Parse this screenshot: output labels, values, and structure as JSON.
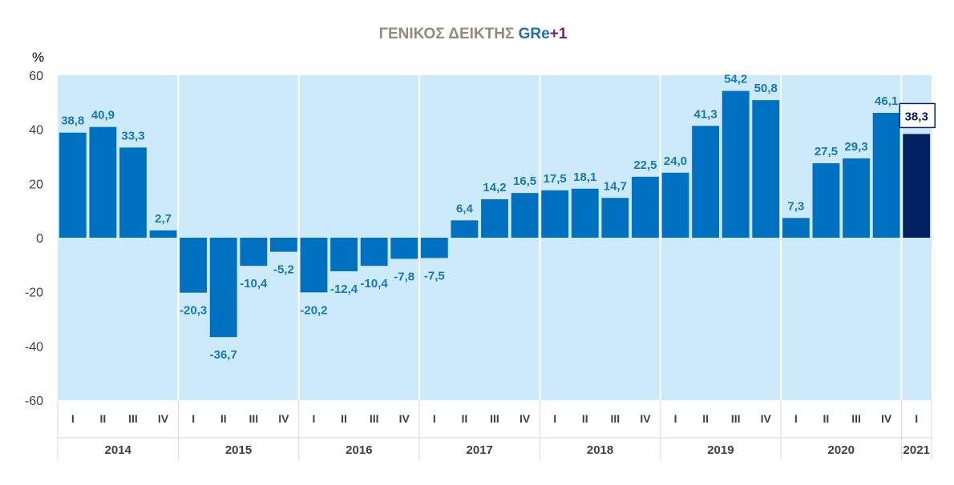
{
  "colors": {
    "panel_background": "#cdeafa",
    "bar": "#0070c0",
    "bar_highlight": "#002060",
    "data_label": "#1479b4",
    "title_main": "#948a75",
    "title_gr": "#1f6fa8",
    "title_plus": "#7b2260",
    "separator": "#ffffff"
  },
  "chart_data": {
    "type": "bar",
    "title": {
      "main": "ΓΕΝΙΚΟΣ ΔΕΙΚΤΗΣ ",
      "gr": "GRe",
      "plus": "+1"
    },
    "ylabel": "%",
    "ylim": [
      -60,
      60
    ],
    "yticks": [
      "60",
      "40",
      "20",
      "0",
      "-20",
      "-40",
      "-60"
    ],
    "ytick_values": [
      60,
      40,
      20,
      0,
      -20,
      -40,
      -60
    ],
    "grid": false,
    "legend": "none",
    "years": [
      {
        "label": "2014",
        "quarters": 4
      },
      {
        "label": "2015",
        "quarters": 4
      },
      {
        "label": "2016",
        "quarters": 4
      },
      {
        "label": "2017",
        "quarters": 4
      },
      {
        "label": "2018",
        "quarters": 4
      },
      {
        "label": "2019",
        "quarters": 4
      },
      {
        "label": "2020",
        "quarters": 4
      },
      {
        "label": "2021",
        "quarters": 1
      }
    ],
    "categories": [
      "I",
      "II",
      "III",
      "IV",
      "I",
      "II",
      "III",
      "IV",
      "I",
      "II",
      "III",
      "IV",
      "I",
      "II",
      "III",
      "IV",
      "I",
      "II",
      "III",
      "IV",
      "I",
      "II",
      "III",
      "IV",
      "I",
      "II",
      "III",
      "IV",
      "I"
    ],
    "values": [
      38.8,
      40.9,
      33.3,
      2.7,
      -20.3,
      -36.7,
      -10.4,
      -5.2,
      -20.2,
      -12.4,
      -10.4,
      -7.8,
      -7.5,
      6.4,
      14.2,
      16.5,
      17.5,
      18.1,
      14.7,
      22.5,
      24.0,
      41.3,
      54.2,
      50.8,
      7.3,
      27.5,
      29.3,
      46.1,
      38.3
    ],
    "labels": [
      "38,8",
      "40,9",
      "33,3",
      "2,7",
      "-20,3",
      "-36,7",
      "-10,4",
      "-5,2",
      "-20,2",
      "-12,4",
      "-10,4",
      "-7,8",
      "-7,5",
      "6,4",
      "14,2",
      "16,5",
      "17,5",
      "18,1",
      "14,7",
      "22,5",
      "24,0",
      "41,3",
      "54,2",
      "50,8",
      "7,3",
      "27,5",
      "29,3",
      "46,1",
      "38,3"
    ],
    "highlight_index": 28
  }
}
